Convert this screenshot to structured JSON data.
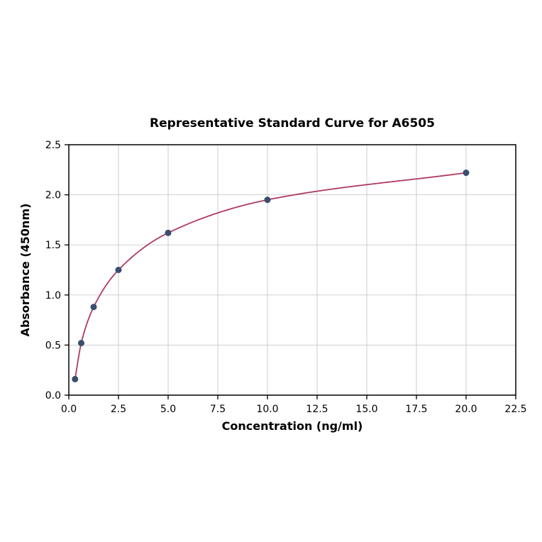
{
  "chart_data": {
    "type": "scatter",
    "title": "Representative Standard Curve for A6505",
    "xlabel": "Concentration (ng/ml)",
    "ylabel": "Absorbance (450nm)",
    "x": [
      0.313,
      0.625,
      1.25,
      2.5,
      5.0,
      10.0,
      20.0
    ],
    "y": [
      0.16,
      0.52,
      0.88,
      1.25,
      1.62,
      1.95,
      2.22
    ],
    "xlim": [
      0,
      22.5
    ],
    "ylim": [
      0,
      2.5
    ],
    "x_ticks": [
      0.0,
      2.5,
      5.0,
      7.5,
      10.0,
      12.5,
      15.0,
      17.5,
      20.0,
      22.5
    ],
    "x_tick_labels": [
      "0.0",
      "2.5",
      "5.0",
      "7.5",
      "10.0",
      "12.5",
      "15.0",
      "17.5",
      "20.0",
      "22.5"
    ],
    "y_ticks": [
      0.0,
      0.5,
      1.0,
      1.5,
      2.0,
      2.5
    ],
    "y_tick_labels": [
      "0.0",
      "0.5",
      "1.0",
      "1.5",
      "2.0",
      "2.5"
    ],
    "grid": true,
    "legend": "none",
    "colors": {
      "curve": "#b03a5c",
      "points": "#3a4e6f",
      "grid": "#c9c9c9",
      "border": "#000000",
      "background": "#ffffff"
    }
  }
}
